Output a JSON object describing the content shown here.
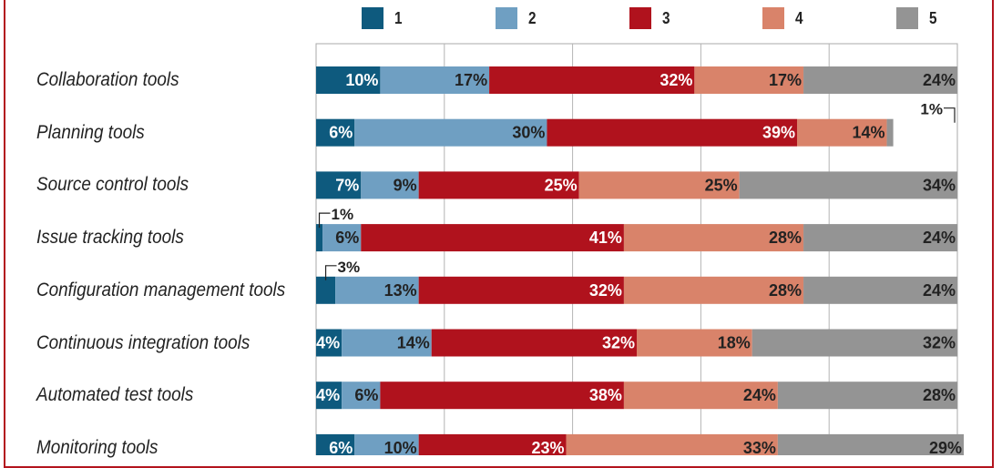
{
  "chart_data": {
    "type": "bar",
    "orientation": "horizontal",
    "stacked": true,
    "legend_position": "top",
    "xlim": [
      0,
      100
    ],
    "grid": true,
    "series_names": [
      "1",
      "2",
      "3",
      "4",
      "5"
    ],
    "colors": [
      "#0e5a7e",
      "#6f9fc2",
      "#b0121d",
      "#d9836a",
      "#949494"
    ],
    "categories": [
      "Collaboration tools",
      "Planning tools",
      "Source control tools",
      "Issue tracking tools",
      "Configuration management tools",
      "Continuous integration tools",
      "Automated test tools",
      "Monitoring tools"
    ],
    "rows": [
      {
        "values": [
          10,
          17,
          32,
          17,
          24
        ],
        "labels": [
          "10%",
          "17%",
          "32%",
          "17%",
          "24%"
        ]
      },
      {
        "values": [
          6,
          30,
          39,
          14,
          1
        ],
        "labels": [
          "6%",
          "30%",
          "39%",
          "14%",
          "1%"
        ]
      },
      {
        "values": [
          7,
          9,
          25,
          25,
          34
        ],
        "labels": [
          "7%",
          "9%",
          "25%",
          "25%",
          "34%"
        ]
      },
      {
        "values": [
          1,
          6,
          41,
          28,
          24
        ],
        "labels": [
          "1%",
          "6%",
          "41%",
          "28%",
          "24%"
        ]
      },
      {
        "values": [
          3,
          13,
          32,
          28,
          24
        ],
        "labels": [
          "3%",
          "13%",
          "32%",
          "28%",
          "24%"
        ]
      },
      {
        "values": [
          4,
          14,
          32,
          18,
          32
        ],
        "labels": [
          "4%",
          "14%",
          "32%",
          "18%",
          "32%"
        ]
      },
      {
        "values": [
          4,
          6,
          38,
          24,
          28
        ],
        "labels": [
          "4%",
          "6%",
          "38%",
          "24%",
          "28%"
        ]
      },
      {
        "values": [
          6,
          10,
          23,
          33,
          29
        ],
        "labels": [
          "6%",
          "10%",
          "23%",
          "33%",
          "29%"
        ]
      }
    ],
    "callouts": [
      {
        "row": 1,
        "segment": 4,
        "label": "1%"
      },
      {
        "row": 3,
        "segment": 0,
        "label": "1%"
      },
      {
        "row": 4,
        "segment": 0,
        "label": "3%"
      }
    ]
  }
}
